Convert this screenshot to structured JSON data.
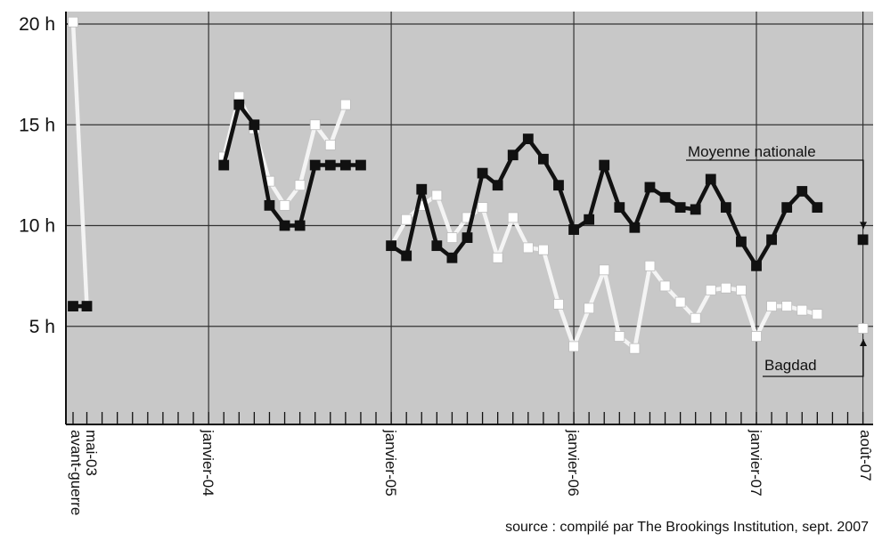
{
  "chart_data": {
    "type": "line",
    "title": "",
    "xlabel": "",
    "ylabel": "",
    "ylim": [
      0,
      20
    ],
    "grid": true,
    "colors": {
      "background": "#c8c8c8",
      "national": "#111111",
      "baghdad": "#f4f4f4",
      "grid": "#333333"
    },
    "y_ticks": [
      {
        "value": 20,
        "label": "20 h"
      },
      {
        "value": 15,
        "label": "15 h"
      },
      {
        "value": 10,
        "label": "10 h"
      },
      {
        "value": 5,
        "label": "5 h"
      }
    ],
    "x_ticks": [
      {
        "month": -2,
        "label": "avant-guerre"
      },
      {
        "month": -1,
        "label": "mai-03"
      },
      {
        "month": 7,
        "label": "janvier-04"
      },
      {
        "month": 19,
        "label": "janvier-05"
      },
      {
        "month": 31,
        "label": "janvier-06"
      },
      {
        "month": 43,
        "label": "janvier-07"
      },
      {
        "month": 50,
        "label": "août-07"
      }
    ],
    "series": [
      {
        "name": "Moyenne nationale",
        "segments": [
          [
            [
              -2,
              6
            ],
            [
              -1,
              6
            ]
          ],
          [
            [
              8,
              13
            ],
            [
              9,
              16
            ],
            [
              10,
              15
            ],
            [
              11,
              11
            ],
            [
              12,
              10
            ],
            [
              13,
              10
            ],
            [
              14,
              13
            ],
            [
              15,
              13
            ],
            [
              16,
              13
            ],
            [
              17,
              13
            ]
          ],
          [
            [
              19,
              9
            ],
            [
              20,
              8.5
            ],
            [
              21,
              11.8
            ],
            [
              22,
              9
            ],
            [
              23,
              8.4
            ],
            [
              24,
              9.4
            ],
            [
              25,
              12.6
            ],
            [
              26,
              12
            ],
            [
              27,
              13.5
            ],
            [
              28,
              14.3
            ],
            [
              29,
              13.3
            ],
            [
              30,
              12
            ],
            [
              31,
              9.8
            ],
            [
              32,
              10.3
            ],
            [
              33,
              13
            ],
            [
              34,
              10.9
            ],
            [
              35,
              9.9
            ],
            [
              36,
              11.9
            ],
            [
              37,
              11.4
            ],
            [
              38,
              10.9
            ],
            [
              39,
              10.8
            ],
            [
              40,
              12.3
            ],
            [
              41,
              10.9
            ],
            [
              42,
              9.2
            ],
            [
              43,
              8
            ],
            [
              44,
              9.3
            ],
            [
              45,
              10.9
            ],
            [
              46,
              11.7
            ],
            [
              47,
              10.9
            ]
          ]
        ],
        "final": [
          50,
          9.3
        ]
      },
      {
        "name": "Bagdad",
        "segments": [
          [
            [
              -2,
              20.1
            ],
            [
              -1,
              6
            ]
          ],
          [
            [
              8,
              13.4
            ],
            [
              9,
              16.4
            ],
            [
              10,
              14.8
            ],
            [
              11,
              12.2
            ],
            [
              12,
              11
            ],
            [
              13,
              12
            ],
            [
              14,
              15
            ],
            [
              15,
              14
            ],
            [
              16,
              16
            ]
          ],
          [
            [
              19,
              9
            ],
            [
              20,
              10.3
            ],
            [
              21,
              11
            ],
            [
              22,
              11.5
            ],
            [
              23,
              9.4
            ],
            [
              24,
              10.4
            ],
            [
              25,
              10.9
            ],
            [
              26,
              8.4
            ],
            [
              27,
              10.4
            ],
            [
              28,
              8.9
            ],
            [
              29,
              8.8
            ],
            [
              30,
              6.1
            ],
            [
              31,
              4
            ],
            [
              32,
              5.9
            ],
            [
              33,
              7.8
            ],
            [
              34,
              4.5
            ],
            [
              35,
              3.9
            ],
            [
              36,
              8
            ],
            [
              37,
              7
            ],
            [
              38,
              6.2
            ],
            [
              39,
              5.4
            ],
            [
              40,
              6.8
            ],
            [
              41,
              6.9
            ],
            [
              42,
              6.8
            ],
            [
              43,
              4.5
            ],
            [
              44,
              6
            ],
            [
              45,
              6
            ],
            [
              46,
              5.8
            ],
            [
              47,
              5.6
            ]
          ]
        ],
        "final": [
          50,
          4.9
        ]
      }
    ],
    "annotations": [
      {
        "text": "Moyenne nationale",
        "series": "Moyenne nationale"
      },
      {
        "text": "Bagdad",
        "series": "Bagdad"
      }
    ],
    "source": "source : compilé par The Brookings Institution, sept. 2007"
  }
}
